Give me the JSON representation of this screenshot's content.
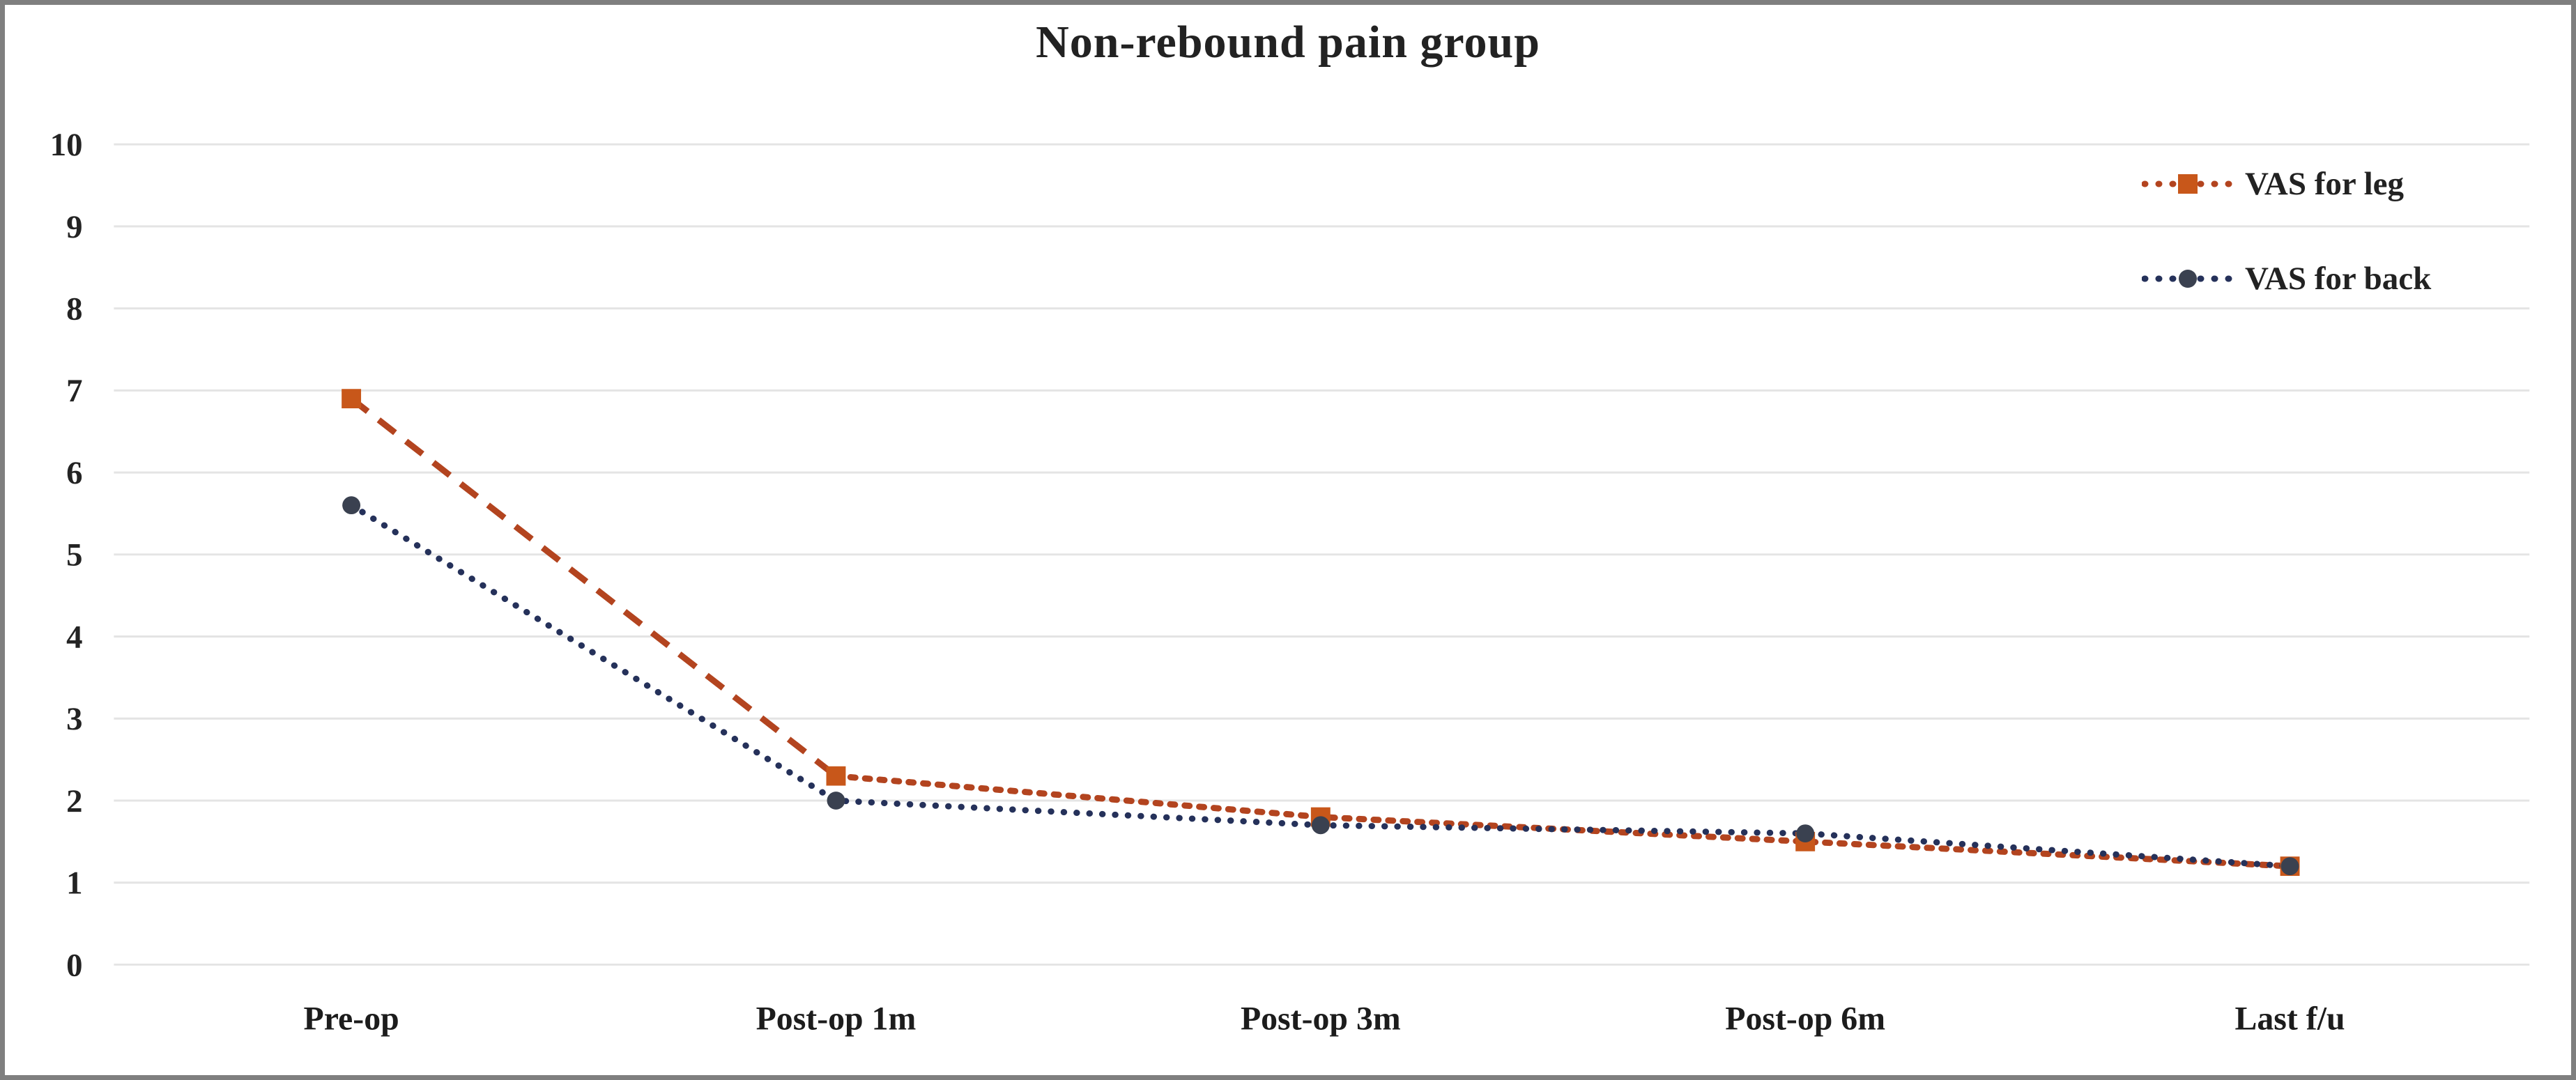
{
  "title": "Non-rebound pain group",
  "chart_data": {
    "type": "line",
    "title": "Non-rebound pain group",
    "categories": [
      "Pre-op",
      "Post-op 1m",
      "Post-op 3m",
      "Post-op 6m",
      "Last f/u"
    ],
    "series": [
      {
        "name": "VAS for leg",
        "values": [
          6.9,
          2.3,
          1.8,
          1.5,
          1.2
        ],
        "line_color": "#B3441F",
        "marker_color": "#C8571A",
        "line_style": "dashed",
        "marker": "square"
      },
      {
        "name": "VAS for back",
        "values": [
          5.6,
          2.0,
          1.7,
          1.6,
          1.2
        ],
        "line_color": "#25315A",
        "marker_color": "#3A4150",
        "line_style": "dotted",
        "marker": "circle"
      }
    ],
    "xlabel": "",
    "ylabel": "",
    "ylim": [
      0,
      10
    ],
    "ytick_step": 1,
    "yticks": [
      0,
      1,
      2,
      3,
      4,
      5,
      6,
      7,
      8,
      9,
      10
    ],
    "grid": "horizontal",
    "grid_color": "#E4E4E4",
    "legend_position": "top-right",
    "frame_border_color": "#7f7f7f",
    "text_color": "#222222"
  }
}
